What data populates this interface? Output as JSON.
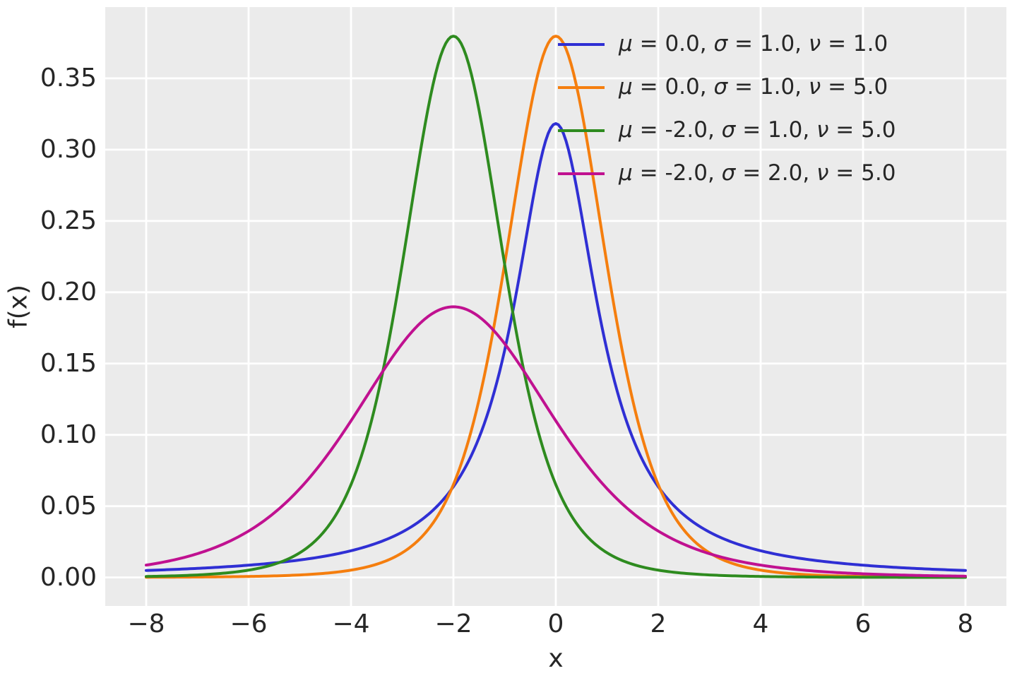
{
  "figure": {
    "background": "#ffffff",
    "axes_background": "#ebebeb",
    "grid_color": "#ffffff",
    "text_color": "#262626"
  },
  "chart_data": {
    "type": "line",
    "title": "",
    "xlabel": "x",
    "ylabel": "f(x)",
    "distribution": "student-t location-scale pdf",
    "grid": true,
    "legend_position": "upper right",
    "legend_frame": false,
    "xlim": [
      -8.8,
      8.8
    ],
    "ylim": [
      -0.02,
      0.4
    ],
    "x_sample_range": [
      -8,
      8
    ],
    "x_sample_step": 0.05,
    "x_ticks": {
      "values": [
        -8,
        -6,
        -4,
        -2,
        0,
        2,
        4,
        6,
        8
      ],
      "labels": [
        "−8",
        "−6",
        "−4",
        "−2",
        "0",
        "2",
        "4",
        "6",
        "8"
      ]
    },
    "y_ticks": {
      "values": [
        0.0,
        0.05,
        0.1,
        0.15,
        0.2,
        0.25,
        0.3,
        0.35
      ],
      "labels": [
        "0.00",
        "0.05",
        "0.10",
        "0.15",
        "0.20",
        "0.25",
        "0.30",
        "0.35"
      ]
    },
    "series": [
      {
        "name": "μ = 0.0, σ = 1.0, ν = 1.0",
        "mu": 0.0,
        "sigma": 1.0,
        "nu": 1.0,
        "peak": 0.3183,
        "color": "#2f2fd4"
      },
      {
        "name": "μ = 0.0, σ = 1.0, ν = 5.0",
        "mu": 0.0,
        "sigma": 1.0,
        "nu": 5.0,
        "peak": 0.3796,
        "color": "#f57e0e"
      },
      {
        "name": "μ = -2.0, σ = 1.0, ν = 5.0",
        "mu": -2.0,
        "sigma": 1.0,
        "nu": 5.0,
        "peak": 0.3796,
        "color": "#2e8b1f"
      },
      {
        "name": "μ = -2.0, σ = 2.0, ν = 5.0",
        "mu": -2.0,
        "sigma": 2.0,
        "nu": 5.0,
        "peak": 0.1898,
        "color": "#c01190"
      }
    ]
  }
}
